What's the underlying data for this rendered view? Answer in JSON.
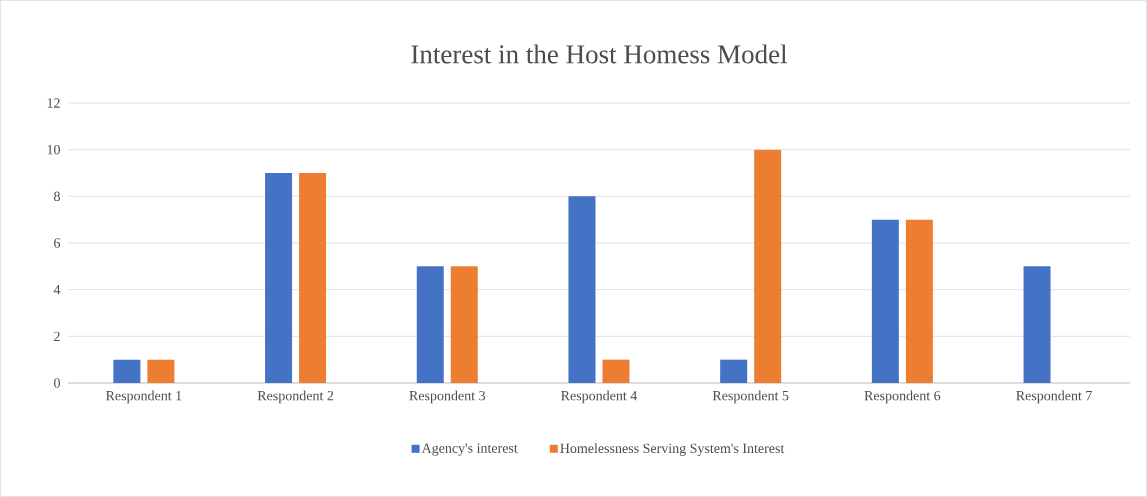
{
  "chart_data": {
    "type": "bar",
    "title": "Interest in the Host Homess Model",
    "categories": [
      "Respondent 1",
      "Respondent 2",
      "Respondent 3",
      "Respondent 4",
      "Respondent 5",
      "Respondent 6",
      "Respondent 7"
    ],
    "series": [
      {
        "name": "Agency's interest",
        "color": "#4472c4",
        "values": [
          1,
          9,
          5,
          8,
          1,
          7,
          5
        ]
      },
      {
        "name": "Homelessness Serving System's Interest",
        "color": "#ed7d31",
        "values": [
          1,
          9,
          5,
          1,
          10,
          7,
          null
        ]
      }
    ],
    "ylim": [
      0,
      12
    ],
    "yticks": [
      0,
      2,
      4,
      6,
      8,
      10,
      12
    ],
    "grid": "y",
    "legend": "bottom"
  }
}
